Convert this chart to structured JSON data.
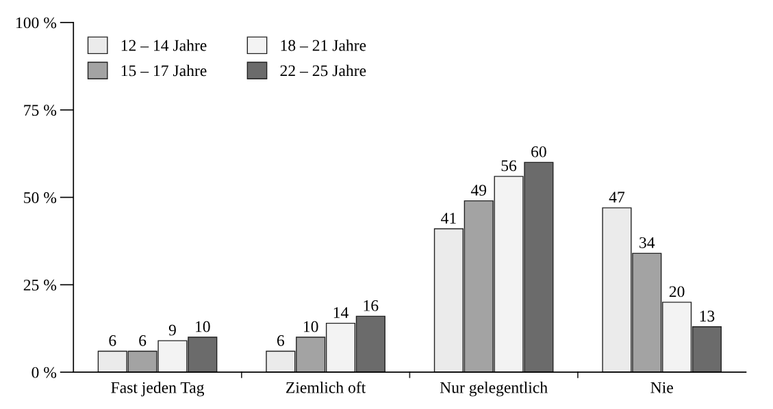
{
  "chart_data": {
    "type": "bar",
    "categories": [
      "Fast jeden Tag",
      "Ziemlich oft",
      "Nur gelegentlich",
      "Nie"
    ],
    "series": [
      {
        "name": "12 – 14 Jahre",
        "color": "#ebebeb",
        "values": [
          6,
          6,
          41,
          47
        ]
      },
      {
        "name": "15 – 17 Jahre",
        "color": "#a3a3a3",
        "values": [
          6,
          10,
          49,
          34
        ]
      },
      {
        "name": "18 – 21 Jahre",
        "color": "#f3f3f3",
        "values": [
          9,
          14,
          56,
          20
        ]
      },
      {
        "name": "22 – 25 Jahre",
        "color": "#6b6b6b",
        "values": [
          10,
          16,
          60,
          13
        ]
      }
    ],
    "ylim": [
      0,
      100
    ],
    "yticks": [
      {
        "value": 0,
        "label": "0 %"
      },
      {
        "value": 25,
        "label": "25 %"
      },
      {
        "value": 50,
        "label": "50 %"
      },
      {
        "value": 75,
        "label": "75 %"
      },
      {
        "value": 100,
        "label": "100 %"
      }
    ],
    "data_labels": true,
    "legend": "top left",
    "grid": false
  }
}
